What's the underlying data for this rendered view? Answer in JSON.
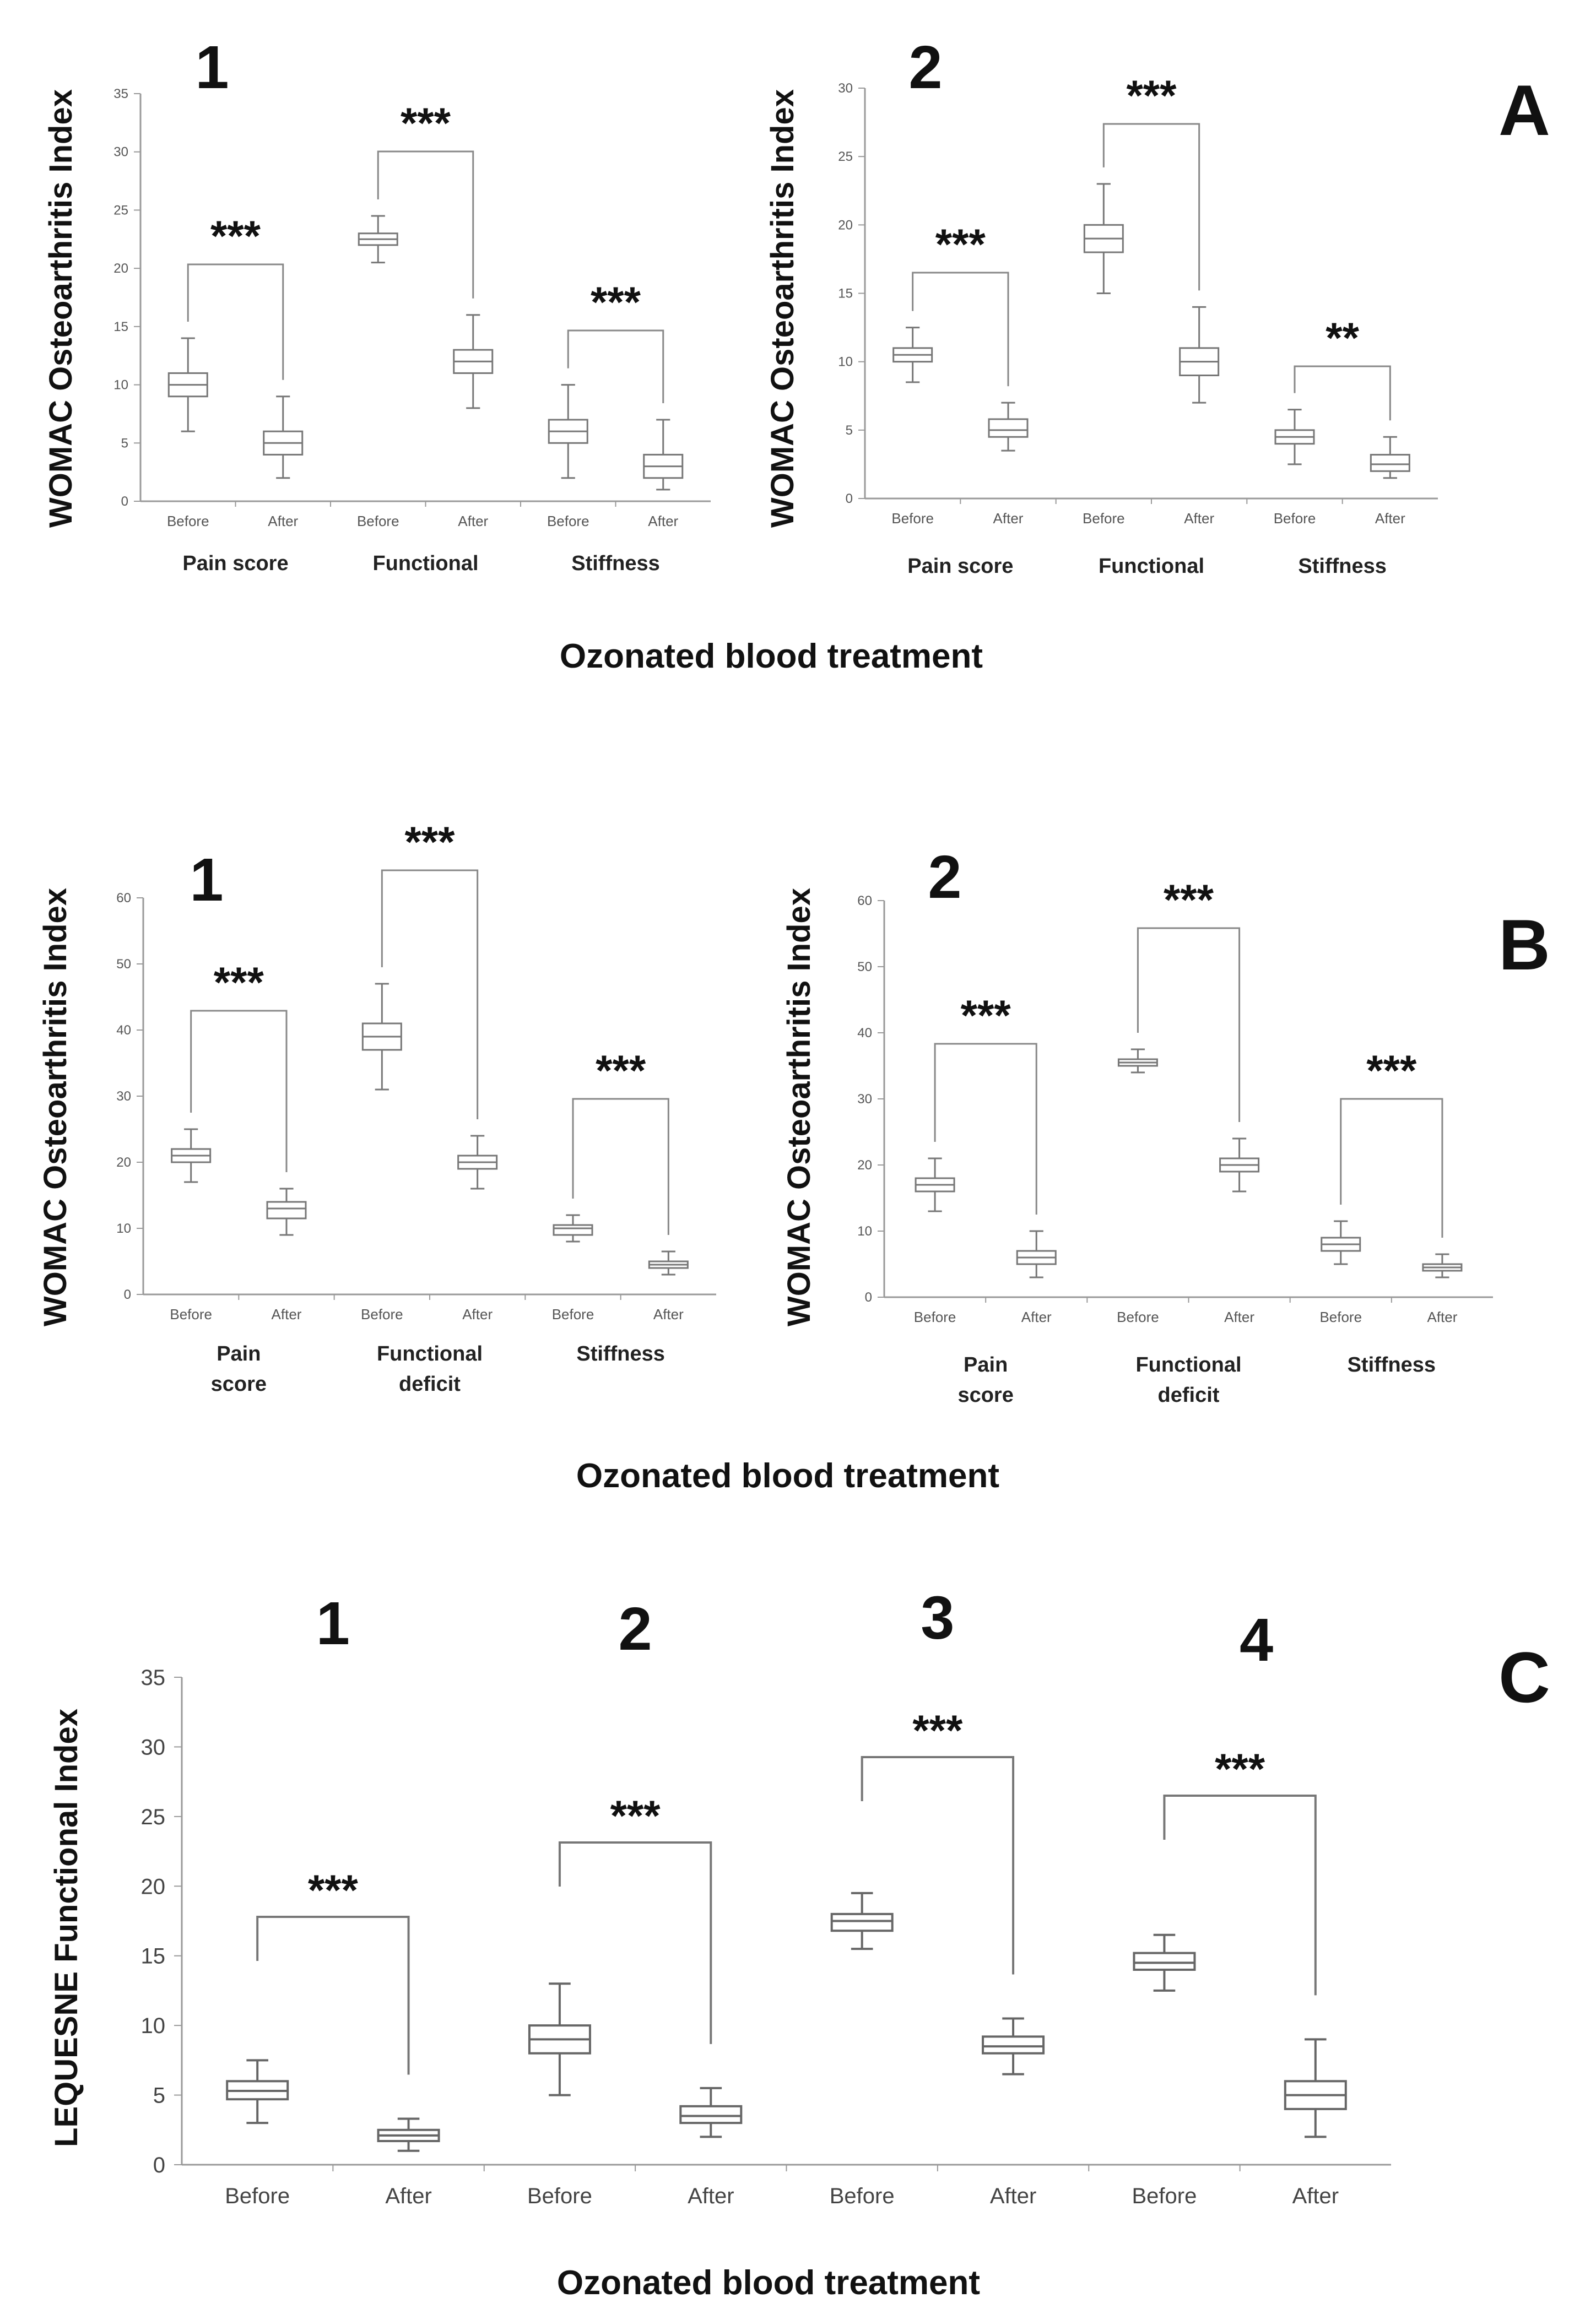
{
  "chart_data": [
    {
      "type": "box",
      "panel": "A",
      "subplot": "1",
      "ylabel": "WOMAC Osteoarthritis Index",
      "xlabel": "Ozonated blood treatment",
      "ylim": [
        0,
        35
      ],
      "yticks": [
        0,
        5,
        10,
        15,
        20,
        25,
        30,
        35
      ],
      "categories": [
        "Before",
        "After",
        "Before",
        "After",
        "Before",
        "After"
      ],
      "groups": [
        {
          "label": "Pain score",
          "significance": "***"
        },
        {
          "label": "Functional",
          "significance": "***"
        },
        {
          "label": "Stiffness",
          "significance": "***"
        }
      ],
      "boxes": [
        {
          "min": 6,
          "q1": 9,
          "median": 10,
          "q3": 11,
          "max": 14
        },
        {
          "min": 2,
          "q1": 4,
          "median": 5,
          "q3": 6,
          "max": 9
        },
        {
          "min": 20.5,
          "q1": 22,
          "median": 22.5,
          "q3": 23,
          "max": 24.5
        },
        {
          "min": 8,
          "q1": 11,
          "median": 12,
          "q3": 13,
          "max": 16
        },
        {
          "min": 2,
          "q1": 5,
          "median": 6,
          "q3": 7,
          "max": 10
        },
        {
          "min": 1,
          "q1": 2,
          "median": 3,
          "q3": 4,
          "max": 7
        }
      ]
    },
    {
      "type": "box",
      "panel": "A",
      "subplot": "2",
      "ylabel": "WOMAC Osteoarthritis Index",
      "xlabel": "Ozonated blood treatment",
      "ylim": [
        0,
        30
      ],
      "yticks": [
        0,
        5,
        10,
        15,
        20,
        25,
        30
      ],
      "categories": [
        "Before",
        "After",
        "Before",
        "After",
        "Before",
        "After"
      ],
      "groups": [
        {
          "label": "Pain score",
          "significance": "***"
        },
        {
          "label": "Functional",
          "significance": "***"
        },
        {
          "label": "Stiffness",
          "significance": "**"
        }
      ],
      "boxes": [
        {
          "min": 8.5,
          "q1": 10,
          "median": 10.5,
          "q3": 11,
          "max": 12.5
        },
        {
          "min": 3.5,
          "q1": 4.5,
          "median": 5,
          "q3": 5.8,
          "max": 7
        },
        {
          "min": 15,
          "q1": 18,
          "median": 19,
          "q3": 20,
          "max": 23
        },
        {
          "min": 7,
          "q1": 9,
          "median": 10,
          "q3": 11,
          "max": 14
        },
        {
          "min": 2.5,
          "q1": 4,
          "median": 4.5,
          "q3": 5,
          "max": 6.5
        },
        {
          "min": 1.5,
          "q1": 2,
          "median": 2.5,
          "q3": 3.2,
          "max": 4.5
        }
      ]
    },
    {
      "type": "box",
      "panel": "B",
      "subplot": "1",
      "ylabel": "WOMAC Osteoarthritis Index",
      "xlabel": "Ozonated blood treatment",
      "ylim": [
        0,
        60
      ],
      "yticks": [
        0,
        10,
        20,
        30,
        40,
        50,
        60
      ],
      "categories": [
        "Before",
        "After",
        "Before",
        "After",
        "Before",
        "After"
      ],
      "groups": [
        {
          "label": "Pain score",
          "significance": "***"
        },
        {
          "label": "Functional deficit",
          "significance": "***"
        },
        {
          "label": "Stiffness",
          "significance": "***"
        }
      ],
      "boxes": [
        {
          "min": 17,
          "q1": 20,
          "median": 21,
          "q3": 22,
          "max": 25
        },
        {
          "min": 9,
          "q1": 11.5,
          "median": 13,
          "q3": 14,
          "max": 16
        },
        {
          "min": 31,
          "q1": 37,
          "median": 39,
          "q3": 41,
          "max": 47
        },
        {
          "min": 16,
          "q1": 19,
          "median": 20,
          "q3": 21,
          "max": 24
        },
        {
          "min": 8,
          "q1": 9,
          "median": 10,
          "q3": 10.5,
          "max": 12
        },
        {
          "min": 3,
          "q1": 4,
          "median": 4.5,
          "q3": 5,
          "max": 6.5
        }
      ]
    },
    {
      "type": "box",
      "panel": "B",
      "subplot": "2",
      "ylabel": "WOMAC Osteoarthritis Index",
      "xlabel": "Ozonated blood treatment",
      "ylim": [
        0,
        60
      ],
      "yticks": [
        0,
        10,
        20,
        30,
        40,
        50,
        60
      ],
      "categories": [
        "Before",
        "After",
        "Before",
        "After",
        "Before",
        "After"
      ],
      "groups": [
        {
          "label": "Pain score",
          "significance": "***"
        },
        {
          "label": "Functional deficit",
          "significance": "***"
        },
        {
          "label": "Stiffness",
          "significance": "***"
        }
      ],
      "boxes": [
        {
          "min": 13,
          "q1": 16,
          "median": 17,
          "q3": 18,
          "max": 21
        },
        {
          "min": 3,
          "q1": 5,
          "median": 6,
          "q3": 7,
          "max": 10
        },
        {
          "min": 34,
          "q1": 35,
          "median": 35.5,
          "q3": 36,
          "max": 37.5
        },
        {
          "min": 16,
          "q1": 19,
          "median": 20,
          "q3": 21,
          "max": 24
        },
        {
          "min": 5,
          "q1": 7,
          "median": 8,
          "q3": 9,
          "max": 11.5
        },
        {
          "min": 3,
          "q1": 4,
          "median": 4.5,
          "q3": 5,
          "max": 6.5
        }
      ]
    },
    {
      "type": "box",
      "panel": "C",
      "ylabel": "LEQUESNE Functional Index",
      "xlabel": "Ozonated blood treatment",
      "ylim": [
        0,
        35
      ],
      "yticks": [
        0,
        5,
        10,
        15,
        20,
        25,
        30,
        35
      ],
      "subplot_labels": [
        "1",
        "2",
        "3",
        "4"
      ],
      "categories": [
        "Before",
        "After",
        "Before",
        "After",
        "Before",
        "After",
        "Before",
        "After"
      ],
      "significance": [
        "***",
        "***",
        "***",
        "***"
      ],
      "boxes": [
        {
          "min": 3,
          "q1": 4.7,
          "median": 5.3,
          "q3": 6,
          "max": 7.5
        },
        {
          "min": 1,
          "q1": 1.7,
          "median": 2.1,
          "q3": 2.5,
          "max": 3.3
        },
        {
          "min": 5,
          "q1": 8,
          "median": 9,
          "q3": 10,
          "max": 13
        },
        {
          "min": 2,
          "q1": 3,
          "median": 3.5,
          "q3": 4.2,
          "max": 5.5
        },
        {
          "min": 15.5,
          "q1": 16.8,
          "median": 17.5,
          "q3": 18,
          "max": 19.5
        },
        {
          "min": 6.5,
          "q1": 8,
          "median": 8.5,
          "q3": 9.2,
          "max": 10.5
        },
        {
          "min": 12.5,
          "q1": 14,
          "median": 14.5,
          "q3": 15.2,
          "max": 16.5
        },
        {
          "min": 2,
          "q1": 4,
          "median": 5,
          "q3": 6,
          "max": 9
        }
      ]
    }
  ],
  "panel_letters": [
    "A",
    "B",
    "C"
  ]
}
